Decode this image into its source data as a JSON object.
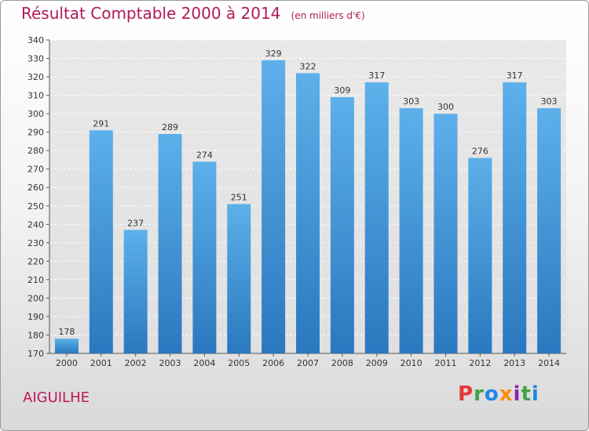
{
  "header": {
    "title": "Résultat Comptable 2000 à 2014",
    "unit": "(en milliers d'€)"
  },
  "footer": {
    "commune": "AIGUILHE",
    "logo_letters": [
      "P",
      "r",
      "o",
      "x",
      "i",
      "t",
      "i"
    ],
    "logo_colors": [
      "#e53935",
      "#43a047",
      "#1e88e5",
      "#fb8c00",
      "#8e24aa",
      "#43a047",
      "#1e88e5"
    ]
  },
  "chart_data": {
    "type": "bar",
    "title": "Résultat Comptable 2000 à 2014",
    "xlabel": "",
    "ylabel": "",
    "categories": [
      "2000",
      "2001",
      "2002",
      "2003",
      "2004",
      "2005",
      "2006",
      "2007",
      "2008",
      "2009",
      "2010",
      "2011",
      "2012",
      "2013",
      "2014"
    ],
    "values": [
      178,
      291,
      237,
      289,
      274,
      251,
      329,
      322,
      309,
      317,
      303,
      300,
      276,
      317,
      303
    ],
    "ylim": [
      170,
      340
    ],
    "ytick_step": 10,
    "grid": true,
    "bar_color_top": "#5db0ea",
    "bar_color_bottom": "#2a78bf"
  }
}
